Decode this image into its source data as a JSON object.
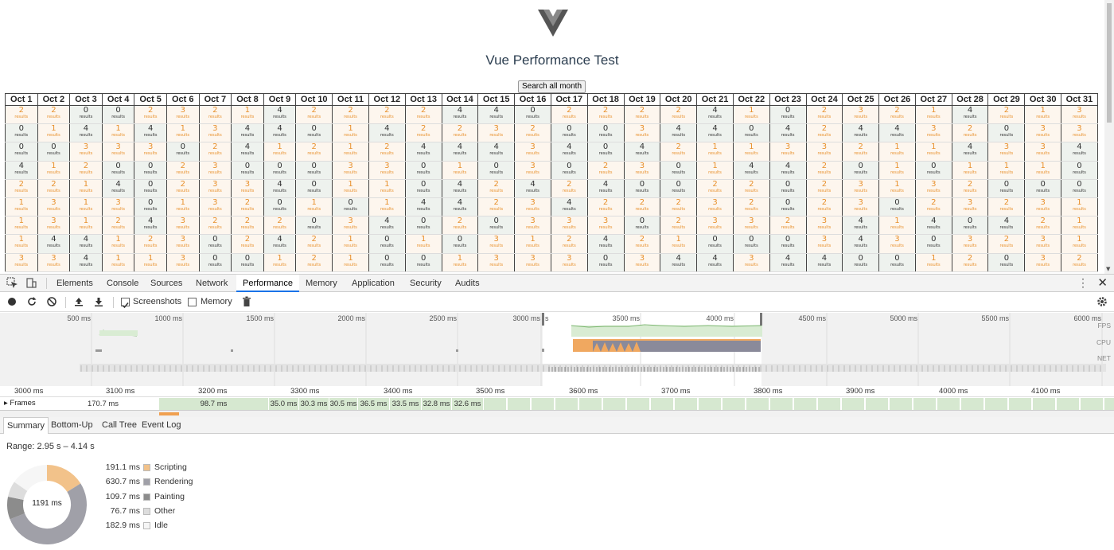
{
  "page": {
    "title": "Vue Performance Test",
    "search_button": "Search all month",
    "days": [
      "Oct 1",
      "Oct 2",
      "Oct 3",
      "Oct 4",
      "Oct 5",
      "Oct 6",
      "Oct 7",
      "Oct 8",
      "Oct 9",
      "Oct 10",
      "Oct 11",
      "Oct 12",
      "Oct 13",
      "Oct 14",
      "Oct 15",
      "Oct 16",
      "Oct 17",
      "Oct 18",
      "Oct 19",
      "Oct 20",
      "Oct 21",
      "Oct 22",
      "Oct 23",
      "Oct 24",
      "Oct 25",
      "Oct 26",
      "Oct 27",
      "Oct 28",
      "Oct 29",
      "Oct 30",
      "Oct 31"
    ],
    "result_word": "results",
    "rows": [
      [
        2,
        2,
        0,
        0,
        2,
        3,
        2,
        1,
        4,
        2,
        2,
        2,
        2,
        4,
        4,
        0,
        2,
        2,
        2,
        2,
        4,
        1,
        0,
        2,
        3,
        2,
        1,
        4,
        2,
        1,
        3
      ],
      [
        0,
        1,
        4,
        1,
        4,
        1,
        3,
        4,
        4,
        0,
        1,
        4,
        2,
        2,
        3,
        2,
        0,
        0,
        3,
        4,
        4,
        0,
        4,
        2,
        4,
        4,
        3,
        2,
        0,
        3,
        3
      ],
      [
        0,
        0,
        3,
        3,
        3,
        0,
        2,
        4,
        1,
        2,
        1,
        2,
        4,
        4,
        4,
        3,
        4,
        0,
        4,
        2,
        1,
        1,
        3,
        3,
        2,
        1,
        1,
        4,
        3,
        3,
        4
      ],
      [
        4,
        1,
        2,
        0,
        0,
        2,
        3,
        0,
        0,
        0,
        3,
        3,
        0,
        1,
        0,
        3,
        0,
        2,
        3,
        0,
        1,
        4,
        4,
        2,
        0,
        1,
        0,
        1,
        1,
        1,
        0
      ],
      [
        2,
        2,
        1,
        4,
        0,
        2,
        3,
        3,
        4,
        0,
        1,
        1,
        0,
        4,
        2,
        4,
        2,
        4,
        0,
        0,
        2,
        2,
        0,
        2,
        3,
        1,
        3,
        2,
        0,
        0,
        0
      ],
      [
        1,
        3,
        1,
        3,
        0,
        1,
        3,
        2,
        0,
        1,
        0,
        1,
        4,
        4,
        2,
        3,
        4,
        2,
        2,
        2,
        3,
        2,
        0,
        2,
        3,
        0,
        2,
        3,
        2,
        3,
        1
      ],
      [
        1,
        3,
        1,
        2,
        4,
        3,
        2,
        2,
        2,
        0,
        3,
        4,
        0,
        2,
        0,
        3,
        3,
        3,
        0,
        2,
        3,
        3,
        2,
        3,
        4,
        1,
        4,
        0,
        4,
        2,
        1
      ],
      [
        1,
        4,
        4,
        1,
        2,
        3,
        0,
        2,
        4,
        2,
        1,
        0,
        1,
        0,
        3,
        1,
        2,
        4,
        2,
        1,
        0,
        0,
        0,
        3,
        4,
        3,
        0,
        3,
        2,
        3,
        1
      ],
      [
        3,
        3,
        4,
        1,
        1,
        3,
        0,
        0,
        1,
        2,
        1,
        0,
        0,
        1,
        3,
        3,
        3,
        0,
        3,
        4,
        4,
        3,
        4,
        4,
        0,
        0,
        1,
        2,
        0,
        3,
        2
      ]
    ]
  },
  "devtools": {
    "tabs": [
      "Elements",
      "Console",
      "Sources",
      "Network",
      "Performance",
      "Memory",
      "Application",
      "Security",
      "Audits"
    ],
    "active_tab": "Performance",
    "toolbar": {
      "screenshots_label": "Screenshots",
      "screenshots_checked": true,
      "memory_label": "Memory",
      "memory_checked": false
    },
    "overview": {
      "ticks": [
        "500 ms",
        "1000 ms",
        "1500 ms",
        "2000 ms",
        "2500 ms",
        "3000 ms",
        "3500 ms",
        "4000 ms",
        "4500 ms",
        "5000 ms",
        "5500 ms",
        "6000 ms"
      ],
      "tracks": [
        "FPS",
        "CPU",
        "NET"
      ],
      "selection_marker": "s"
    },
    "flame": {
      "ticks": [
        "3000 ms",
        "3100 ms",
        "3200 ms",
        "3300 ms",
        "3400 ms",
        "3500 ms",
        "3600 ms",
        "3700 ms",
        "3800 ms",
        "3900 ms",
        "4000 ms",
        "4100 ms"
      ],
      "frames_label": "Frames",
      "first_frame": "170.7 ms",
      "frames": [
        "98.7 ms",
        "35.0 ms",
        "30.3 ms",
        "30.5 ms",
        "36.5 ms",
        "33.5 ms",
        "32.8 ms",
        "32.6 ms"
      ]
    },
    "bottom_tabs": [
      "Summary",
      "Bottom-Up",
      "Call Tree",
      "Event Log"
    ],
    "active_bottom_tab": "Summary",
    "summary": {
      "range": "Range: 2.95 s – 4.14 s",
      "total": "1191 ms",
      "items": [
        {
          "value": "191.1 ms",
          "label": "Scripting",
          "ms": 191.1,
          "color": "#f2c28a"
        },
        {
          "value": "630.7 ms",
          "label": "Rendering",
          "ms": 630.7,
          "color": "#a0a0a8"
        },
        {
          "value": "109.7 ms",
          "label": "Painting",
          "ms": 109.7,
          "color": "#8c8c8c"
        },
        {
          "value": "76.7 ms",
          "label": "Other",
          "ms": 76.7,
          "color": "#dddddd"
        },
        {
          "value": "182.9 ms",
          "label": "Idle",
          "ms": 182.9,
          "color": "#f6f6f6"
        }
      ]
    }
  }
}
